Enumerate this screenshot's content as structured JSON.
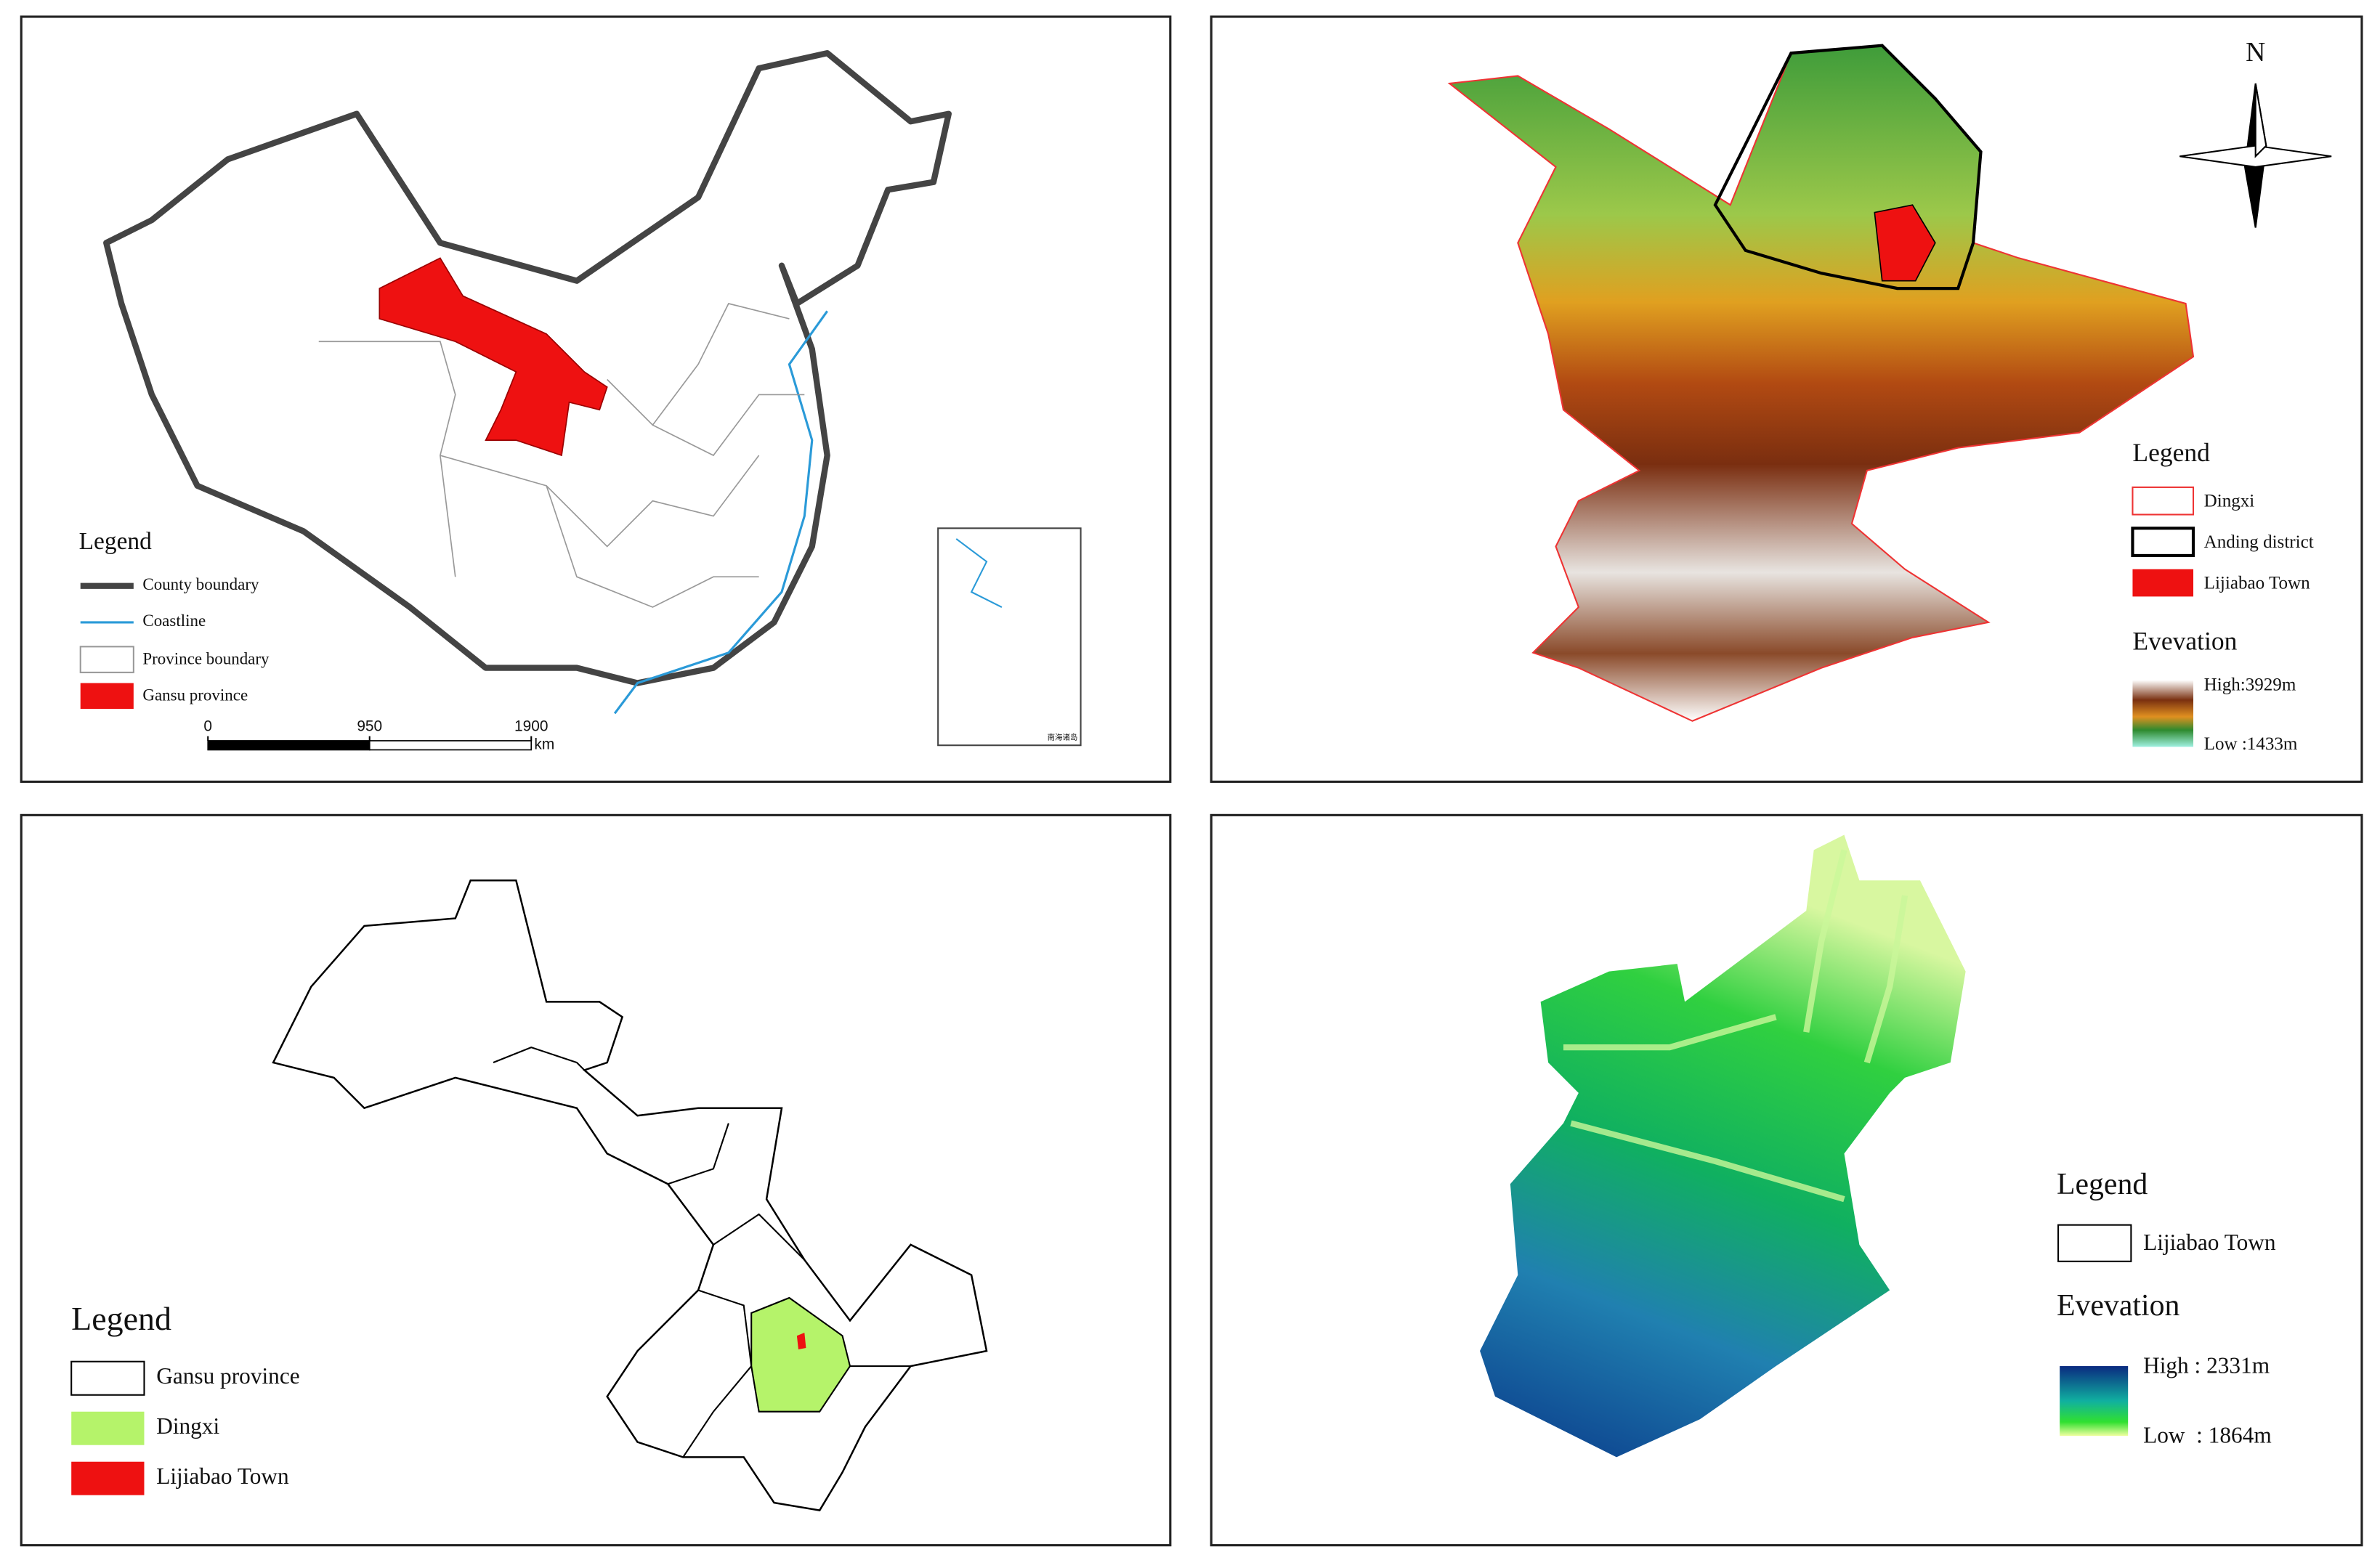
{
  "panels": [
    {
      "legend": {
        "title": "Legend",
        "items": [
          "County boundary",
          "Coastline",
          "Province boundary",
          "Gansu province"
        ]
      },
      "scale_bar": {
        "ticks": [
          0,
          950,
          1900
        ],
        "unit": "km"
      },
      "inset_label": "南海诸岛"
    },
    {
      "north": "N",
      "legend": {
        "title": "Legend",
        "items": [
          "Dingxi",
          "Anding district",
          "Lijiabao Town"
        ]
      },
      "elevation": {
        "title": "Evevation",
        "high": "High:3929m",
        "low": "Low :1433m"
      }
    },
    {
      "legend": {
        "title": "Legend",
        "items": [
          "Gansu province",
          "Dingxi",
          "Lijiabao Town"
        ]
      }
    },
    {
      "legend": {
        "title": "Legend",
        "items": [
          "Lijiabao Town"
        ]
      },
      "elevation": {
        "title": "Evevation",
        "high": "High : 2331m",
        "low": "Low  : 1864m"
      }
    }
  ]
}
